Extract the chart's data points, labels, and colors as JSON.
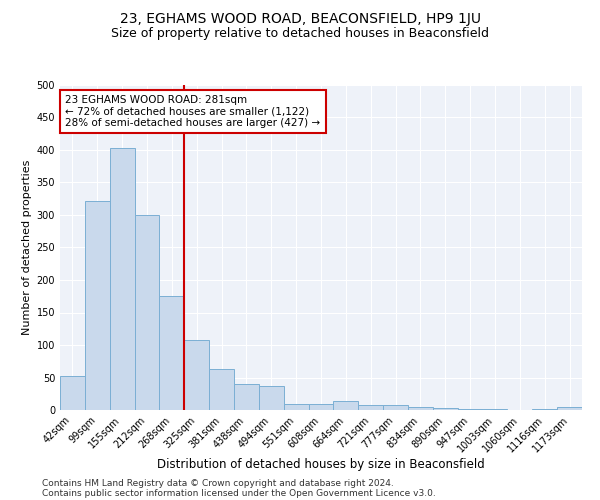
{
  "title": "23, EGHAMS WOOD ROAD, BEACONSFIELD, HP9 1JU",
  "subtitle": "Size of property relative to detached houses in Beaconsfield",
  "xlabel": "Distribution of detached houses by size in Beaconsfield",
  "ylabel": "Number of detached properties",
  "categories": [
    "42sqm",
    "99sqm",
    "155sqm",
    "212sqm",
    "268sqm",
    "325sqm",
    "381sqm",
    "438sqm",
    "494sqm",
    "551sqm",
    "608sqm",
    "664sqm",
    "721sqm",
    "777sqm",
    "834sqm",
    "890sqm",
    "947sqm",
    "1003sqm",
    "1060sqm",
    "1116sqm",
    "1173sqm"
  ],
  "values": [
    52,
    322,
    403,
    300,
    175,
    108,
    63,
    40,
    37,
    10,
    10,
    14,
    8,
    7,
    5,
    3,
    1,
    1,
    0,
    1,
    5
  ],
  "bar_color": "#c9d9ec",
  "bar_edgecolor": "#7bafd4",
  "vline_color": "#cc0000",
  "vline_x_index": 4.5,
  "annotation_text": "23 EGHAMS WOOD ROAD: 281sqm\n← 72% of detached houses are smaller (1,122)\n28% of semi-detached houses are larger (427) →",
  "annotation_box_color": "#ffffff",
  "annotation_box_edgecolor": "#cc0000",
  "ylim": [
    0,
    500
  ],
  "yticks": [
    0,
    50,
    100,
    150,
    200,
    250,
    300,
    350,
    400,
    450,
    500
  ],
  "footer1": "Contains HM Land Registry data © Crown copyright and database right 2024.",
  "footer2": "Contains public sector information licensed under the Open Government Licence v3.0.",
  "background_color": "#eef2f9",
  "title_fontsize": 10,
  "subtitle_fontsize": 9,
  "xlabel_fontsize": 8.5,
  "ylabel_fontsize": 8,
  "tick_fontsize": 7,
  "annotation_fontsize": 7.5,
  "footer_fontsize": 6.5
}
